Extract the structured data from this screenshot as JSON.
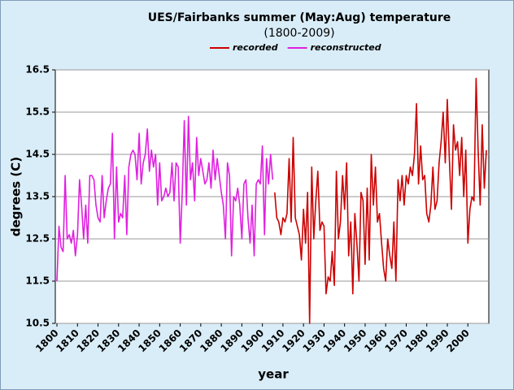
{
  "chart_data": {
    "type": "line",
    "title": "UES/Fairbanks summer (May:Aug) temperature",
    "subtitle": "(1800-2009)",
    "x_label": "year",
    "y_label": "degrees (C)",
    "x": [
      1800,
      1801,
      1802,
      1803,
      1804,
      1805,
      1806,
      1807,
      1808,
      1809,
      1810,
      1811,
      1812,
      1813,
      1814,
      1815,
      1816,
      1817,
      1818,
      1819,
      1820,
      1821,
      1822,
      1823,
      1824,
      1825,
      1826,
      1827,
      1828,
      1829,
      1830,
      1831,
      1832,
      1833,
      1834,
      1835,
      1836,
      1837,
      1838,
      1839,
      1840,
      1841,
      1842,
      1843,
      1844,
      1845,
      1846,
      1847,
      1848,
      1849,
      1850,
      1851,
      1852,
      1853,
      1854,
      1855,
      1856,
      1857,
      1858,
      1859,
      1860,
      1861,
      1862,
      1863,
      1864,
      1865,
      1866,
      1867,
      1868,
      1869,
      1870,
      1871,
      1872,
      1873,
      1874,
      1875,
      1876,
      1877,
      1878,
      1879,
      1880,
      1881,
      1882,
      1883,
      1884,
      1885,
      1886,
      1887,
      1888,
      1889,
      1890,
      1891,
      1892,
      1893,
      1894,
      1895,
      1896,
      1897,
      1898,
      1899,
      1900,
      1901,
      1902,
      1903,
      1904,
      1905,
      1906,
      1907,
      1908,
      1909,
      1910,
      1911,
      1912,
      1913,
      1914,
      1915,
      1916,
      1917,
      1918,
      1919,
      1920,
      1921,
      1922,
      1923,
      1924,
      1925,
      1926,
      1927,
      1928,
      1929,
      1930,
      1931,
      1932,
      1933,
      1934,
      1935,
      1936,
      1937,
      1938,
      1939,
      1940,
      1941,
      1942,
      1943,
      1944,
      1945,
      1946,
      1947,
      1948,
      1949,
      1950,
      1951,
      1952,
      1953,
      1954,
      1955,
      1956,
      1957,
      1958,
      1959,
      1960,
      1961,
      1962,
      1963,
      1964,
      1965,
      1966,
      1967,
      1968,
      1969,
      1970,
      1971,
      1972,
      1973,
      1974,
      1975,
      1976,
      1977,
      1978,
      1979,
      1980,
      1981,
      1982,
      1983,
      1984,
      1985,
      1986,
      1987,
      1988,
      1989,
      1990,
      1991,
      1992,
      1993,
      1994,
      1995,
      1996,
      1997,
      1998,
      1999,
      2000,
      2001,
      2002,
      2003,
      2004,
      2005,
      2006,
      2007,
      2008,
      2009
    ],
    "series": [
      {
        "name": "recorded",
        "color": "#cc0000",
        "values": [
          null,
          null,
          null,
          null,
          null,
          null,
          null,
          null,
          null,
          null,
          null,
          null,
          null,
          null,
          null,
          null,
          null,
          null,
          null,
          null,
          null,
          null,
          null,
          null,
          null,
          null,
          null,
          null,
          null,
          null,
          null,
          null,
          null,
          null,
          null,
          null,
          null,
          null,
          null,
          null,
          null,
          null,
          null,
          null,
          null,
          null,
          null,
          null,
          null,
          null,
          null,
          null,
          null,
          null,
          null,
          null,
          null,
          null,
          null,
          null,
          null,
          null,
          null,
          null,
          null,
          null,
          null,
          null,
          null,
          null,
          null,
          null,
          null,
          null,
          null,
          null,
          null,
          null,
          null,
          null,
          null,
          null,
          null,
          null,
          null,
          null,
          null,
          null,
          null,
          null,
          null,
          null,
          null,
          null,
          null,
          null,
          null,
          null,
          null,
          null,
          null,
          null,
          null,
          null,
          null,
          null,
          13.6,
          13.0,
          12.9,
          12.6,
          13.0,
          12.9,
          13.1,
          14.4,
          12.9,
          14.9,
          13.0,
          12.8,
          12.6,
          12.0,
          13.2,
          12.4,
          13.6,
          10.5,
          14.2,
          12.5,
          13.4,
          14.1,
          12.7,
          12.9,
          12.8,
          11.2,
          11.6,
          11.5,
          12.2,
          11.4,
          14.1,
          12.5,
          12.9,
          14.0,
          13.2,
          14.3,
          12.1,
          12.9,
          11.2,
          13.1,
          12.4,
          11.5,
          13.6,
          13.4,
          11.9,
          13.7,
          12.0,
          14.5,
          13.3,
          14.2,
          12.9,
          13.1,
          12.4,
          11.8,
          11.5,
          12.5,
          12.1,
          11.8,
          12.9,
          11.5,
          13.9,
          13.4,
          14.0,
          13.3,
          14.0,
          13.8,
          14.2,
          14.0,
          14.5,
          15.7,
          13.8,
          14.7,
          13.9,
          14.0,
          13.1,
          12.9,
          13.3,
          14.2,
          13.2,
          13.4,
          14.3,
          14.8,
          15.5,
          14.3,
          15.8,
          14.4,
          13.2,
          15.2,
          14.6,
          14.8,
          14.0,
          14.9,
          13.5,
          14.6,
          12.4,
          13.2,
          13.5,
          13.4,
          16.3,
          14.6,
          13.3,
          15.2,
          13.7,
          14.6
        ]
      },
      {
        "name": "reconstructed",
        "color": "#e020e0",
        "values": [
          11.5,
          12.8,
          12.3,
          12.2,
          14.0,
          12.5,
          12.6,
          12.4,
          12.7,
          12.1,
          12.6,
          13.9,
          13.3,
          12.5,
          13.3,
          12.4,
          14.0,
          14.0,
          13.9,
          13.3,
          13.0,
          12.9,
          14.0,
          13.0,
          13.4,
          13.7,
          13.8,
          15.0,
          12.5,
          14.2,
          12.9,
          13.1,
          13.0,
          14.0,
          12.6,
          14.2,
          14.5,
          14.6,
          14.5,
          13.9,
          15.0,
          13.8,
          14.3,
          14.5,
          15.1,
          14.1,
          14.6,
          14.2,
          14.5,
          13.3,
          14.3,
          13.4,
          13.5,
          13.7,
          13.5,
          13.6,
          14.3,
          13.4,
          14.3,
          14.2,
          12.4,
          13.6,
          15.3,
          13.3,
          15.4,
          13.9,
          14.3,
          13.4,
          14.9,
          14.0,
          14.4,
          14.1,
          13.8,
          13.9,
          14.3,
          13.7,
          14.6,
          13.9,
          14.4,
          14.0,
          13.6,
          13.3,
          12.5,
          14.3,
          14.0,
          12.1,
          13.5,
          13.4,
          13.7,
          13.3,
          12.5,
          13.8,
          13.9,
          13.0,
          12.4,
          13.3,
          12.1,
          13.8,
          13.9,
          13.8,
          14.7,
          12.6,
          14.4,
          13.8,
          14.5,
          13.9,
          null,
          null,
          null,
          null,
          null,
          null,
          null,
          null,
          null,
          null,
          null,
          null,
          null,
          null,
          null,
          null,
          null,
          null,
          null,
          null,
          null,
          null,
          null,
          null,
          null,
          null,
          null,
          null,
          null,
          null,
          null,
          null,
          null,
          null,
          null,
          null,
          null,
          null,
          null,
          null,
          null,
          null,
          null,
          null,
          null,
          null,
          null,
          null,
          null,
          null,
          null,
          null,
          null,
          null,
          null,
          null,
          null,
          null,
          null,
          null,
          null,
          null,
          null,
          null,
          null,
          null,
          null,
          null,
          null,
          null,
          null,
          null,
          null,
          null,
          null,
          null,
          null,
          null,
          null,
          null,
          null,
          null,
          null,
          null,
          null,
          null,
          null,
          null,
          null,
          null,
          null,
          null,
          null,
          null,
          null,
          null,
          null,
          null,
          null,
          null,
          null,
          null,
          null,
          null
        ]
      }
    ],
    "xlim": [
      1800,
      2009
    ],
    "xticks": [
      1800,
      1810,
      1820,
      1830,
      1840,
      1850,
      1860,
      1870,
      1880,
      1890,
      1900,
      1910,
      1920,
      1930,
      1940,
      1950,
      1960,
      1970,
      1980,
      1990,
      2000
    ],
    "ylim": [
      10.5,
      16.5
    ],
    "yticks": [
      10.5,
      11.5,
      12.5,
      13.5,
      14.5,
      15.5,
      16.5
    ],
    "grid": true,
    "legend": "top"
  }
}
